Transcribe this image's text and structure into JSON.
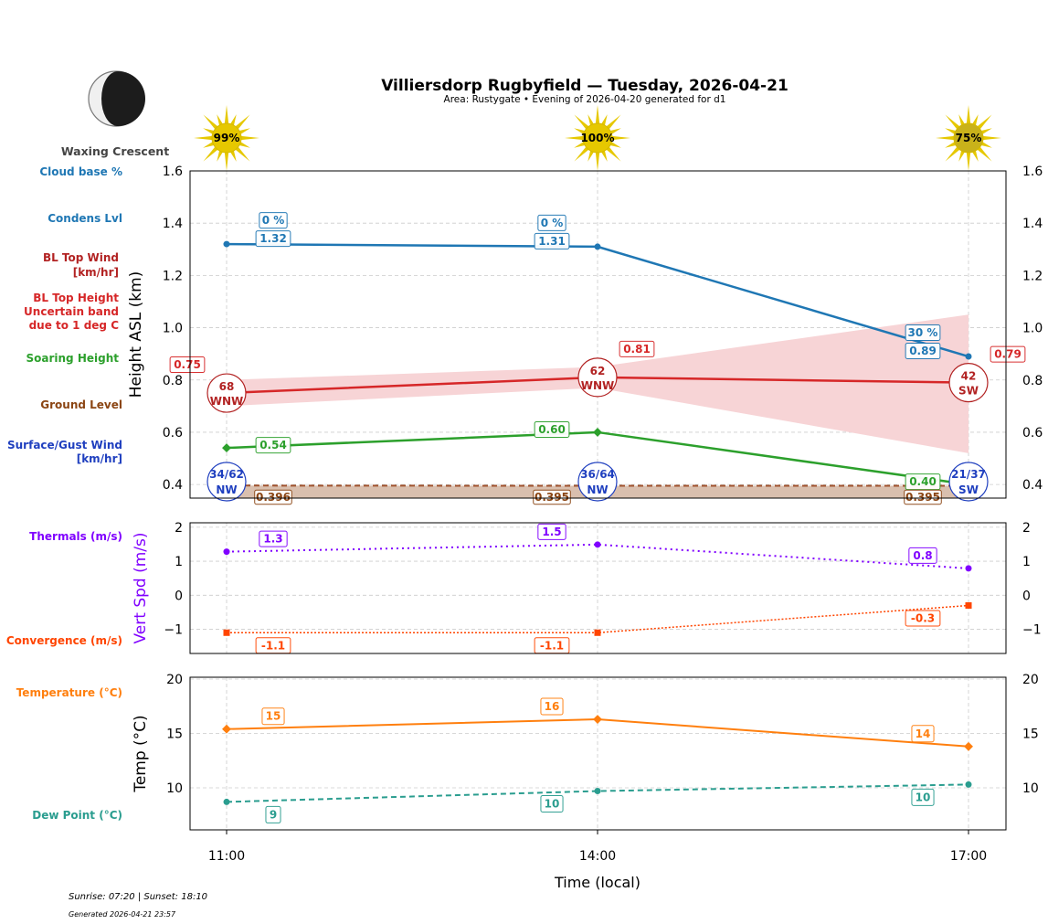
{
  "title": "Villiersdorp Rugbyfield — Tuesday, 2026-04-21",
  "subtitle": "Area: Rustygate • Evening of 2026-04-20 generated for d1",
  "moon_phase": "Waxing Crescent",
  "sun_percent": [
    "99%",
    "100%",
    "75%"
  ],
  "footer": {
    "sun_times": "Sunrise: 07:20 | Sunset: 18:10",
    "generated": "Generated 2026-04-21 23:57"
  },
  "legend": {
    "cloud_base": "Cloud base %",
    "condens": "Condens Lvl",
    "bl_wind_1": "BL Top Wind",
    "bl_wind_2": "[km/hr]",
    "bl_height_1": "BL Top Height",
    "bl_height_2": "Uncertain band",
    "bl_height_3": "due to 1 deg C",
    "soaring": "Soaring Height",
    "ground": "Ground Level",
    "surface_1": "Surface/Gust Wind",
    "surface_2": "[km/hr]",
    "thermals": "Thermals (m/s)",
    "convergence": "Convergence (m/s)",
    "temperature": "Temperature (°C)",
    "dewpoint": "Dew Point (°C)"
  },
  "colors": {
    "condens": "#1f77b4",
    "bl": "#d62728",
    "bl_band": "#f7d4d6",
    "bl_text": "#b22222",
    "soaring": "#2ca02c",
    "ground": "#8b4513",
    "ground_fill": "#d9bfae",
    "surface": "#1f3fbf",
    "thermals": "#8000ff",
    "convergence": "#ff4500",
    "temperature": "#ff7f0e",
    "dewpoint": "#2a9d8f"
  },
  "chart_data": [
    {
      "type": "line",
      "ylabel": "Height ASL (km)",
      "ylim": [
        0.348,
        1.6
      ],
      "yticks": [
        "0.4",
        "0.6",
        "0.8",
        "1.0",
        "1.2",
        "1.4",
        "1.6"
      ],
      "x": [
        "11:00",
        "14:00",
        "17:00"
      ],
      "grid": true,
      "series": [
        {
          "key": "condens",
          "values": [
            1.32,
            1.31,
            0.89
          ],
          "labels": [
            "1.32",
            "1.31",
            "0.89"
          ],
          "cloud_pct": [
            "0 %",
            "0 %",
            "30 %"
          ]
        },
        {
          "key": "bl",
          "values": [
            0.75,
            0.81,
            0.79
          ],
          "labels": [
            "0.75",
            "0.81",
            "0.79"
          ],
          "band_low": [
            0.7,
            0.77,
            0.52
          ],
          "band_high": [
            0.8,
            0.85,
            1.05
          ],
          "wind": [
            "68",
            "62",
            "42"
          ],
          "wind_dir": [
            "WNW",
            "WNW",
            "SW"
          ]
        },
        {
          "key": "soaring",
          "values": [
            0.54,
            0.6,
            0.4
          ],
          "labels": [
            "0.54",
            "0.60",
            "0.40"
          ]
        },
        {
          "key": "ground",
          "values": [
            0.396,
            0.395,
            0.395
          ],
          "labels": [
            "0.396",
            "0.395",
            "0.395"
          ]
        },
        {
          "key": "surface",
          "wind": [
            "34/62",
            "36/64",
            "21/37"
          ],
          "wind_dir": [
            "NW",
            "NW",
            "SW"
          ]
        }
      ]
    },
    {
      "type": "line",
      "ylabel": "Vert Spd (m/s)",
      "ylim": [
        -1.71,
        2.13
      ],
      "yticks": [
        "−1",
        "0",
        "1",
        "2"
      ],
      "series": [
        {
          "key": "thermals",
          "values": [
            1.28,
            1.49,
            0.79
          ],
          "labels": [
            "1.3",
            "1.5",
            "0.8"
          ]
        },
        {
          "key": "convergence",
          "values": [
            -1.1,
            -1.1,
            -0.3
          ],
          "labels": [
            "-1.1",
            "-1.1",
            "-0.3"
          ]
        }
      ]
    },
    {
      "type": "line",
      "ylabel": "Temp (°C)",
      "xlabel": "Time (local)",
      "ylim": [
        6.13,
        20.17
      ],
      "yticks": [
        "10",
        "15",
        "20"
      ],
      "series": [
        {
          "key": "temperature",
          "values": [
            15.4,
            16.3,
            13.8
          ],
          "labels": [
            "15",
            "16",
            "14"
          ]
        },
        {
          "key": "dewpoint",
          "values": [
            8.7,
            9.7,
            10.3
          ],
          "labels": [
            "9",
            "10",
            "10"
          ]
        }
      ]
    }
  ]
}
